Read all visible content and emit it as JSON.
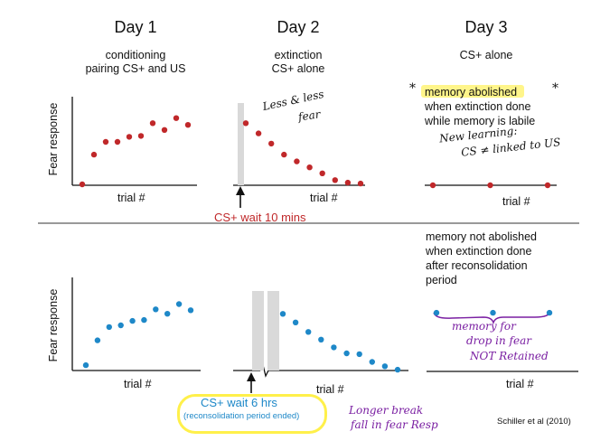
{
  "headers": {
    "day1": {
      "title": "Day 1",
      "line1": "conditioning",
      "line2": "pairing CS+ and US"
    },
    "day2": {
      "title": "Day 2",
      "line1": "extinction",
      "line2": "CS+ alone"
    },
    "day3": {
      "title": "Day 3",
      "line1": "CS+ alone"
    }
  },
  "y_axis_label": "Fear response",
  "x_axis_label": "trial #",
  "top": {
    "wait_label": "CS+ wait 10 mins",
    "day3_note": [
      "memory abolished",
      "when extinction done",
      "while memory is labile"
    ],
    "handwriting": {
      "day2": [
        "Less & less",
        "fear"
      ],
      "day3": [
        "New learning:",
        "CS ≠ linked to US"
      ],
      "stars": "*"
    }
  },
  "bottom": {
    "wait_label": "CS+ wait 6 hrs",
    "wait_sub": "(reconsolidation period ended)",
    "day3_note": [
      "memory not abolished",
      "when extinction done",
      "after reconsolidation",
      "period"
    ],
    "handwriting": {
      "day3": [
        "memory for",
        "drop in fear",
        "NOT Retained"
      ],
      "day2": [
        "Longer break",
        "fall in fear Resp"
      ]
    }
  },
  "citation": "Schiller et al (2010)",
  "colors": {
    "red": "#c0282a",
    "blue": "#1e88c8",
    "gray": "#d9d9d9",
    "highlight": "#fff58a",
    "handwriting": "#7a1fa2"
  },
  "chart_data": [
    {
      "type": "scatter",
      "title": "Day 1 conditioning (top)",
      "series": [
        {
          "name": "Fear response",
          "values": [
            0,
            0.35,
            0.5,
            0.5,
            0.56,
            0.57,
            0.72,
            0.64,
            0.78,
            0.7
          ]
        }
      ],
      "ylim": [
        0,
        1
      ]
    },
    {
      "type": "scatter",
      "title": "Day 2 extinction (top)",
      "series": [
        {
          "name": "Fear response",
          "values": [
            0.72,
            0.6,
            0.48,
            0.35,
            0.27,
            0.2,
            0.13,
            0.05,
            0.02,
            0.01
          ]
        }
      ],
      "ylim": [
        0,
        1
      ]
    },
    {
      "type": "scatter",
      "title": "Day 3 (top)",
      "series": [
        {
          "name": "Fear response",
          "values": [
            0,
            0,
            0
          ]
        }
      ],
      "ylim": [
        0,
        1
      ]
    },
    {
      "type": "scatter",
      "title": "Day 1 conditioning (bottom)",
      "series": [
        {
          "name": "Fear response",
          "values": [
            0.04,
            0.32,
            0.47,
            0.49,
            0.54,
            0.55,
            0.67,
            0.62,
            0.73,
            0.66
          ]
        }
      ],
      "ylim": [
        0,
        1
      ]
    },
    {
      "type": "scatter",
      "title": "Day 2 extinction (bottom)",
      "series": [
        {
          "name": "Fear response",
          "values": [
            0.66,
            0.56,
            0.45,
            0.36,
            0.27,
            0.2,
            0.19,
            0.1,
            0.05,
            0.01
          ]
        }
      ],
      "ylim": [
        0,
        1
      ]
    },
    {
      "type": "scatter",
      "title": "Day 3 (bottom)",
      "series": [
        {
          "name": "Fear response",
          "values": [
            0.68,
            0.68,
            0.68
          ]
        }
      ],
      "ylim": [
        0,
        1
      ]
    }
  ]
}
